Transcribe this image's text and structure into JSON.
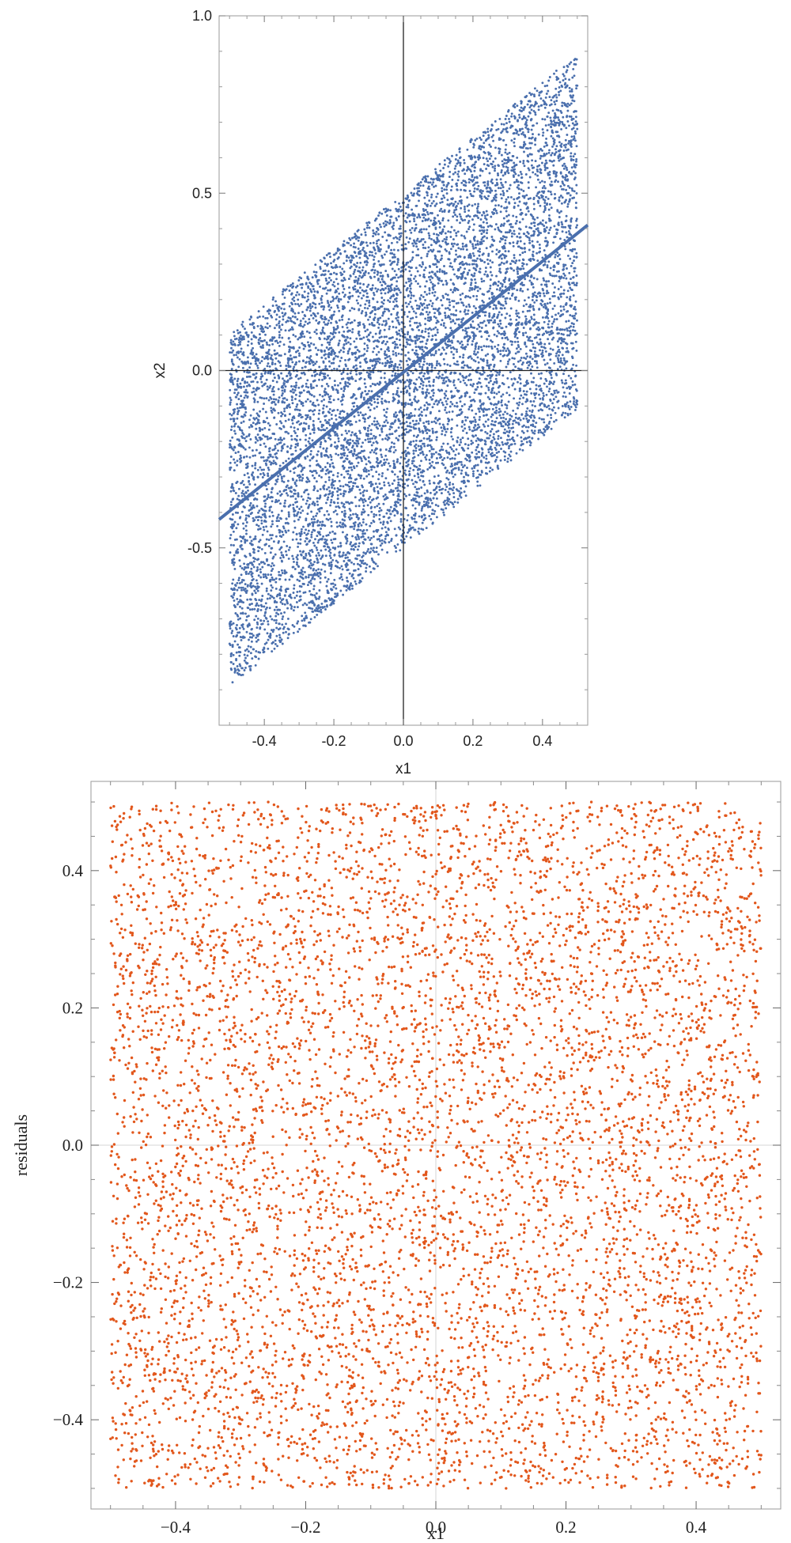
{
  "chart_data": [
    {
      "type": "scatter",
      "xlabel": "x1",
      "ylabel": "x2",
      "xlim": [
        -0.53,
        0.53
      ],
      "ylim": [
        -1.0,
        1.0
      ],
      "x_ticks": [
        -0.4,
        -0.2,
        0.0,
        0.2,
        0.4
      ],
      "x_tick_labels": [
        "-0.4",
        "-0.2",
        "0.0",
        "0.2",
        "0.4"
      ],
      "y_ticks": [
        -0.5,
        0.0,
        0.5,
        1.0
      ],
      "y_tick_labels": [
        "-0.5",
        "0.0",
        "0.5",
        "1.0"
      ],
      "grid": false,
      "axes_through_origin": true,
      "point_color": "#4a6fad",
      "line_color": "#4a6fad",
      "series": [
        {
          "kind": "points",
          "distribution": "uniform parallelogram",
          "x_range": [
            -0.5,
            0.5
          ],
          "y_center_slope": 0.785,
          "y_halfwidth": 0.5,
          "count": 9000
        },
        {
          "kind": "line",
          "x": [
            -0.53,
            0.53
          ],
          "y": [
            -0.42,
            0.41
          ]
        }
      ]
    },
    {
      "type": "scatter",
      "xlabel": "x1",
      "ylabel": "residuals",
      "xlim": [
        -0.53,
        0.53
      ],
      "ylim": [
        -0.53,
        0.53
      ],
      "x_ticks": [
        -0.4,
        -0.2,
        0.0,
        0.2,
        0.4
      ],
      "x_tick_labels": [
        "−0.4",
        "−0.2",
        "0.0",
        "0.2",
        "0.4"
      ],
      "y_ticks": [
        -0.4,
        -0.2,
        0.0,
        0.2,
        0.4
      ],
      "y_tick_labels": [
        "−0.4",
        "−0.2",
        "0.0",
        "0.2",
        "0.4"
      ],
      "grid": false,
      "point_color": "#e2571c",
      "series": [
        {
          "kind": "points",
          "distribution": "uniform square",
          "x_range": [
            -0.5,
            0.5
          ],
          "y_range": [
            -0.5,
            0.5
          ],
          "count": 7000
        }
      ]
    }
  ]
}
